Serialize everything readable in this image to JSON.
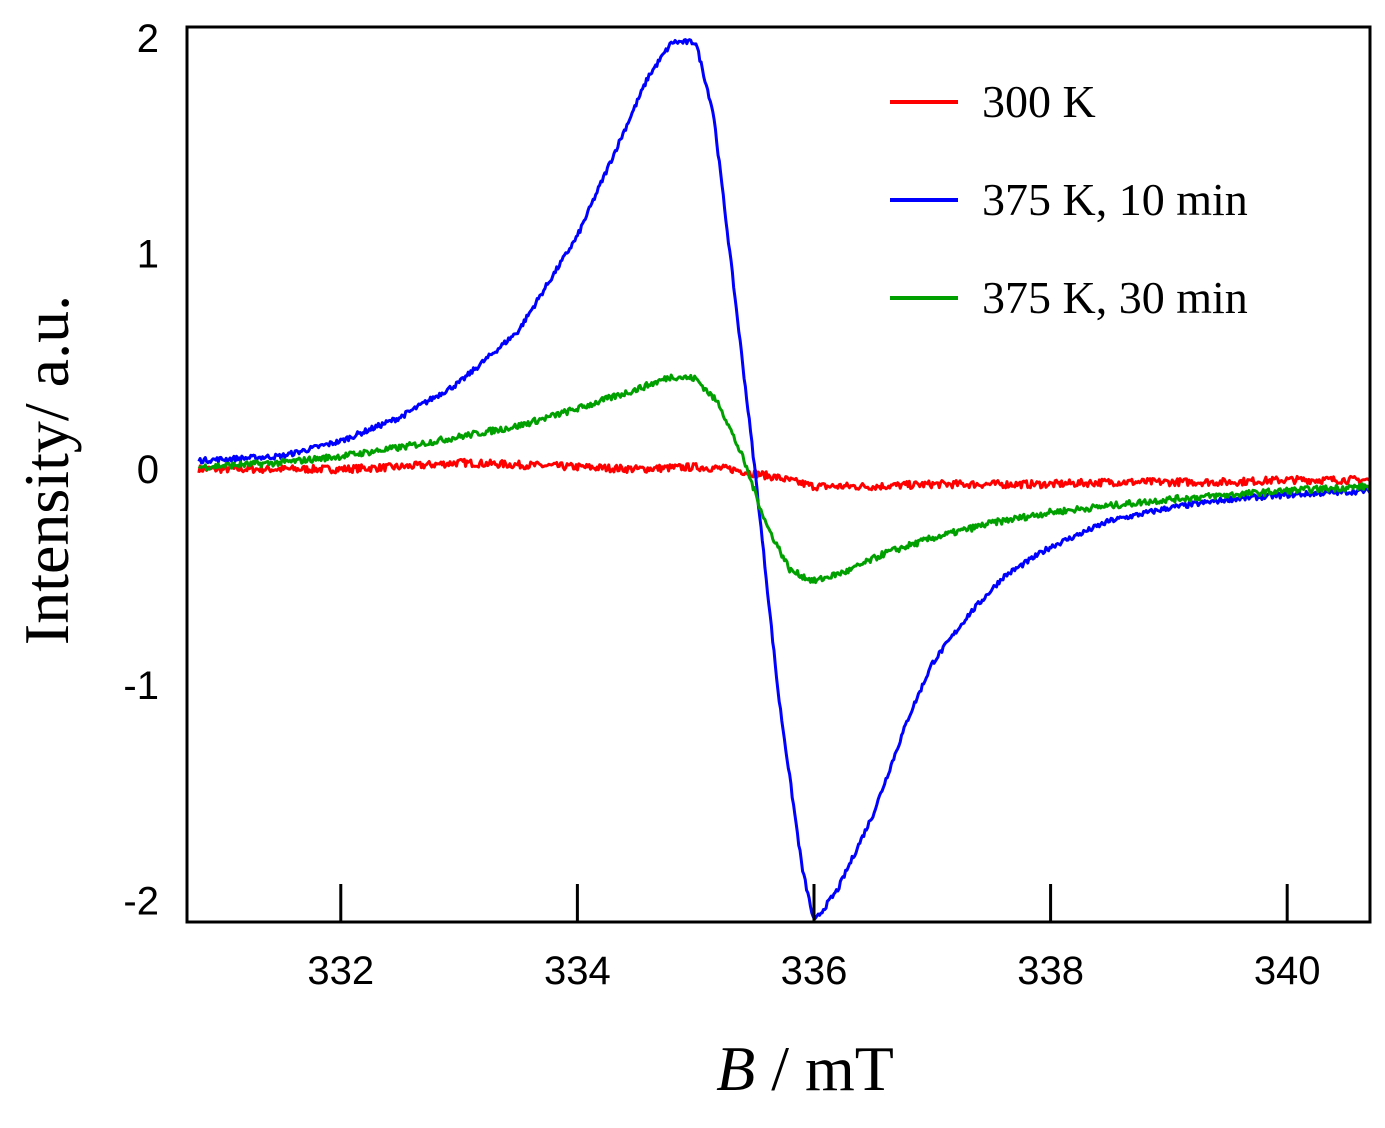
{
  "chart_data": {
    "type": "line",
    "title": "",
    "xlabel": {
      "italic": "B",
      "rest": " / mT"
    },
    "ylabel": "Intensity/ a.u.",
    "xlim": [
      330.7,
      340.7
    ],
    "ylim": [
      -2.1,
      2.05
    ],
    "xticks": [
      332,
      334,
      336,
      338,
      340
    ],
    "xtick_labels": [
      "332",
      "334",
      "336",
      "338",
      "340"
    ],
    "yticks": [
      2,
      1,
      0,
      -1,
      -2
    ],
    "ytick_labels": [
      "2",
      "1",
      "0",
      "-1",
      "-2"
    ],
    "grid": false,
    "legend_position": "top-right",
    "series": [
      {
        "name": "300 K",
        "color": "#ff0000",
        "x": [
          330.8,
          331.5,
          332.0,
          332.5,
          333.0,
          333.5,
          334.0,
          334.5,
          335.0,
          335.3,
          335.5,
          335.7,
          336.0,
          336.5,
          337.0,
          337.5,
          338.0,
          338.5,
          339.0,
          339.5,
          340.0,
          340.5,
          340.7
        ],
        "y": [
          0.0,
          0.0,
          0.0,
          0.01,
          0.03,
          0.02,
          0.01,
          0.0,
          0.01,
          0.0,
          -0.02,
          -0.04,
          -0.08,
          -0.08,
          -0.07,
          -0.07,
          -0.07,
          -0.06,
          -0.06,
          -0.06,
          -0.05,
          -0.05,
          -0.05
        ]
      },
      {
        "name": "375 K, 10 min",
        "color": "#0000ff",
        "x": [
          330.8,
          331.5,
          332.0,
          332.5,
          333.0,
          333.5,
          334.0,
          334.3,
          334.6,
          334.8,
          335.0,
          335.15,
          335.3,
          335.5,
          335.7,
          335.9,
          336.0,
          336.2,
          336.5,
          336.8,
          337.0,
          337.3,
          337.6,
          338.0,
          338.5,
          339.0,
          339.5,
          340.0,
          340.7
        ],
        "y": [
          0.04,
          0.06,
          0.13,
          0.24,
          0.4,
          0.64,
          1.08,
          1.45,
          1.82,
          1.98,
          1.98,
          1.65,
          0.95,
          0.0,
          -1.05,
          -1.85,
          -2.1,
          -1.95,
          -1.6,
          -1.15,
          -0.9,
          -0.68,
          -0.5,
          -0.36,
          -0.24,
          -0.18,
          -0.14,
          -0.12,
          -0.1
        ]
      },
      {
        "name": "375 K, 30 min",
        "color": "#00a000",
        "x": [
          330.8,
          331.5,
          332.0,
          332.5,
          333.0,
          333.5,
          334.0,
          334.5,
          334.8,
          335.0,
          335.2,
          335.4,
          335.6,
          335.8,
          336.0,
          336.3,
          336.6,
          337.0,
          337.5,
          338.0,
          338.5,
          339.0,
          339.5,
          340.0,
          340.7
        ],
        "y": [
          0.01,
          0.03,
          0.06,
          0.1,
          0.15,
          0.2,
          0.28,
          0.37,
          0.43,
          0.42,
          0.3,
          0.05,
          -0.26,
          -0.47,
          -0.52,
          -0.47,
          -0.39,
          -0.32,
          -0.25,
          -0.2,
          -0.17,
          -0.14,
          -0.12,
          -0.1,
          -0.08
        ]
      }
    ]
  }
}
